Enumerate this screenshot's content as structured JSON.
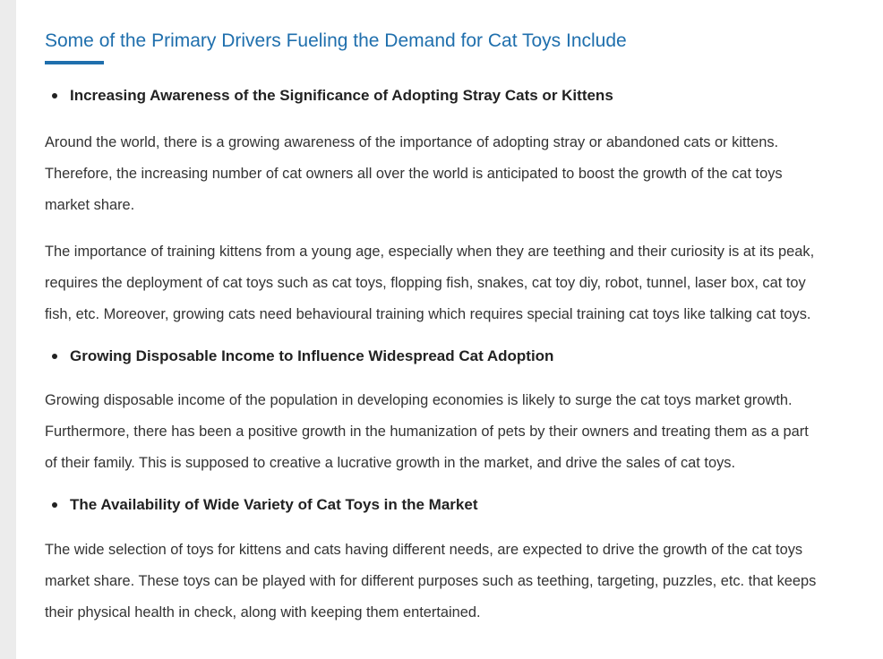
{
  "article": {
    "heading": "Some of the Primary Drivers Fueling the Demand for Cat Toys Include",
    "sections": [
      {
        "bullet": "Increasing Awareness of the Significance of Adopting Stray Cats or Kittens",
        "paragraphs": [
          {
            "lines": [
              "Around the world, there is a growing awareness of the importance of adopting stray or abandoned cats or kittens.",
              "Therefore, the increasing number of cat owners all over the world is anticipated to boost the growth of the cat toys",
              "market share."
            ]
          },
          {
            "lines": [
              "The importance of training kittens from a young age, especially when they are teething and their curiosity is at its peak,",
              "requires the deployment of cat toys such as cat toys, flopping fish, snakes, cat toy diy, robot, tunnel, laser box, cat toy",
              "fish, etc. Moreover, growing cats need behavioural training which requires special training cat toys like talking cat toys."
            ]
          }
        ]
      },
      {
        "bullet": "Growing Disposable Income to Influence Widespread Cat Adoption",
        "paragraphs": [
          {
            "lines": [
              "Growing disposable income of the population in developing economies is likely to surge the cat toys market growth.",
              "Furthermore, there has been a positive growth in the humanization of pets by their owners and treating them as a part",
              "of their family. This is supposed to creative a lucrative growth in the market, and drive the sales of cat toys."
            ]
          }
        ]
      },
      {
        "bullet": "The Availability of Wide Variety of Cat Toys in the Market",
        "paragraphs": [
          {
            "lines": [
              "The wide selection of toys for kittens and cats having different needs, are expected to drive the growth of the cat toys",
              "market share. These toys can be played with for different purposes such as teething, targeting, puzzles, etc. that keeps",
              "their physical health in check, along with keeping them entertained."
            ]
          }
        ]
      }
    ]
  },
  "colors": {
    "heading": "#1f6fad",
    "body_text": "#333333",
    "bullet_text": "#222222",
    "left_rail": "#ececec"
  }
}
